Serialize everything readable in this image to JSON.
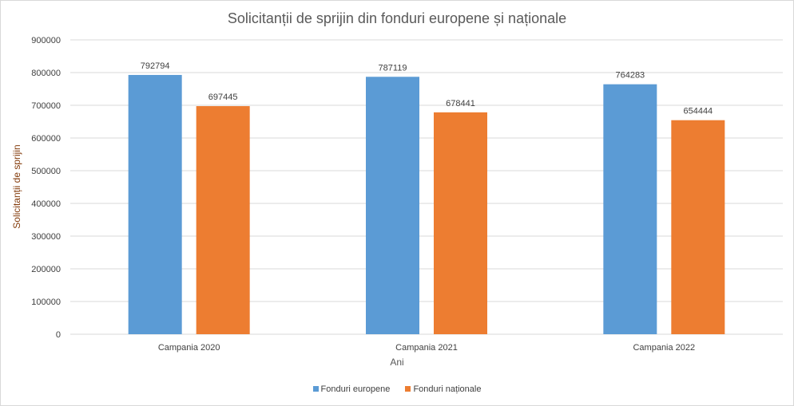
{
  "chart_data": {
    "type": "bar",
    "title": "Solicitanții de sprijin din fonduri europene și naționale",
    "xlabel": "Ani",
    "ylabel": "Solicitanții de sprijin",
    "categories": [
      "Campania 2020",
      "Campania 2021",
      "Campania 2022"
    ],
    "series": [
      {
        "name": "Fonduri europene",
        "color": "#5b9bd5",
        "values": [
          792794,
          787119,
          764283
        ]
      },
      {
        "name": "Fonduri naționale",
        "color": "#ed7d31",
        "values": [
          697445,
          678441,
          654444
        ]
      }
    ],
    "ylim": [
      0,
      900000
    ],
    "yticks": [
      0,
      100000,
      200000,
      300000,
      400000,
      500000,
      600000,
      700000,
      800000,
      900000
    ],
    "grid": true,
    "legend": "bottom",
    "data_labels": true
  }
}
